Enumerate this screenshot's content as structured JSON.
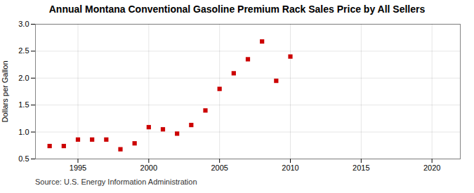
{
  "chart_data": {
    "type": "scatter",
    "title": "Annual Montana Conventional Gasoline Premium Rack Sales Price by All Sellers",
    "ylabel": "Dollars per Gallon",
    "source": "Source: U.S. Energy Information Administration",
    "x": [
      1993,
      1994,
      1995,
      1996,
      1997,
      1998,
      1999,
      2000,
      2001,
      2002,
      2003,
      2004,
      2005,
      2006,
      2007,
      2008,
      2009,
      2010
    ],
    "values": [
      0.74,
      0.74,
      0.86,
      0.86,
      0.86,
      0.68,
      0.79,
      1.09,
      1.05,
      0.97,
      1.13,
      1.4,
      1.8,
      2.09,
      2.35,
      2.68,
      1.95,
      2.4
    ],
    "color": "#cc0000",
    "marker": "square",
    "xlim": [
      1992,
      2022
    ],
    "xticks": [
      1995,
      2000,
      2005,
      2010,
      2015,
      2020
    ],
    "ylim": [
      0.5,
      3.0
    ],
    "yticks": [
      0.5,
      {
        "value": 1.0,
        "label": "1.0"
      },
      1.5,
      {
        "value": 2.0,
        "label": "2.0"
      },
      2.5,
      {
        "value": 3.0,
        "label": "3.0"
      }
    ],
    "grid": true
  }
}
